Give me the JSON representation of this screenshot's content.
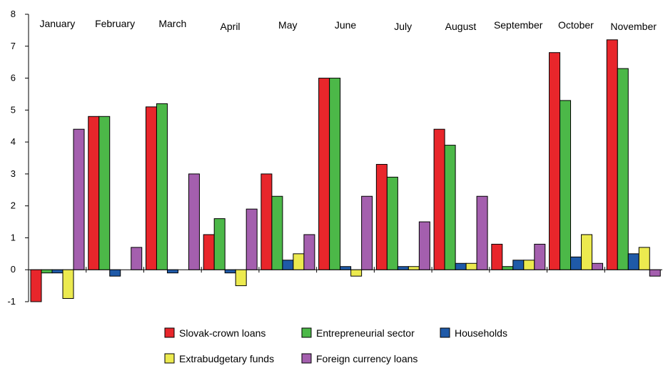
{
  "chart_data": {
    "type": "bar",
    "categories": [
      "January",
      "February",
      "March",
      "April",
      "May",
      "June",
      "July",
      "August",
      "September",
      "October",
      "November"
    ],
    "series": [
      {
        "name": "Slovak-crown loans",
        "color": "#e8262b",
        "values": [
          -1.0,
          4.8,
          5.1,
          1.1,
          3.0,
          6.0,
          3.3,
          4.4,
          0.8,
          6.8,
          7.2
        ]
      },
      {
        "name": "Entrepreneurial sector",
        "color": "#4cb848",
        "values": [
          -0.1,
          4.8,
          5.2,
          1.6,
          2.3,
          6.0,
          2.9,
          3.9,
          0.1,
          5.3,
          6.3
        ]
      },
      {
        "name": "Households",
        "color": "#1f5aa8",
        "values": [
          -0.1,
          -0.2,
          -0.1,
          -0.1,
          0.3,
          0.1,
          0.1,
          0.2,
          0.3,
          0.4,
          0.5
        ]
      },
      {
        "name": "Extrabudgetary funds",
        "color": "#ecea4f",
        "values": [
          -0.9,
          0.0,
          0.0,
          -0.5,
          0.5,
          -0.2,
          0.1,
          0.2,
          0.3,
          1.1,
          0.7
        ]
      },
      {
        "name": "Foreign currency loans",
        "color": "#a45fae",
        "values": [
          4.4,
          0.7,
          3.0,
          1.9,
          1.1,
          2.3,
          1.5,
          2.3,
          0.8,
          0.2,
          -0.2
        ]
      }
    ],
    "ylim": [
      -1,
      8
    ],
    "yticks": [
      "-1",
      "0",
      "1",
      "2",
      "3",
      "4",
      "5",
      "6",
      "7",
      "8"
    ],
    "title": "",
    "xlabel": "",
    "ylabel": "",
    "grid": false,
    "legend_position": "bottom"
  }
}
